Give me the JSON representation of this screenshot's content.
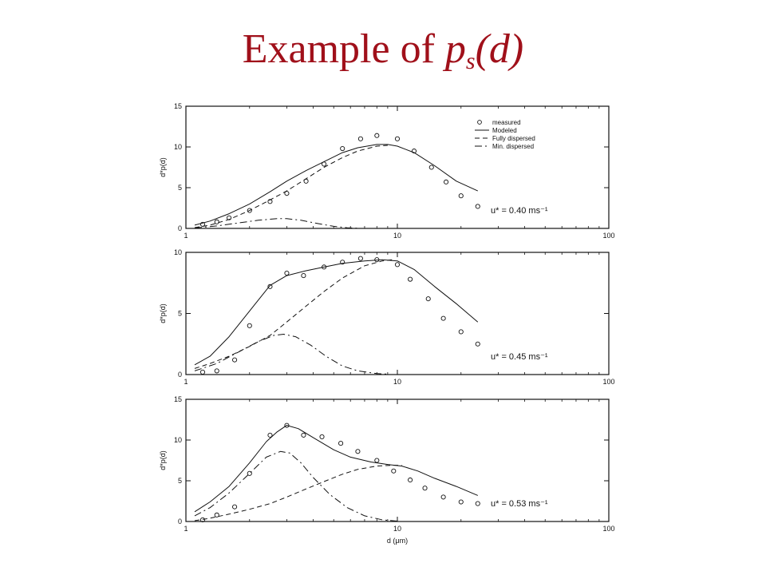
{
  "slide": {
    "title_prefix": "Example of ",
    "title_symbol": "p",
    "title_subscript": "s",
    "title_suffix": "(d)"
  },
  "chart_data": [
    {
      "type": "line",
      "xscale": "log",
      "xlim": [
        1,
        100
      ],
      "ylim": [
        0,
        15
      ],
      "x_ticks": [
        1,
        10,
        100
      ],
      "x_tick_labels": [
        "1",
        "10",
        "100"
      ],
      "y_ticks": [
        0,
        5,
        10,
        15
      ],
      "y_tick_labels": [
        "0",
        "5",
        "10",
        "15"
      ],
      "xlabel": "",
      "ylabel": "d*p(d)",
      "annotation": "u* = 0.40 ms⁻¹",
      "legend": {
        "position": "top-right",
        "entries": [
          {
            "label": "measured",
            "style": "marker"
          },
          {
            "label": "Modeled",
            "style": "solid"
          },
          {
            "label": "Fully dispersed",
            "style": "dashed"
          },
          {
            "label": "Min. dispersed",
            "style": "dashdot"
          }
        ]
      },
      "series": [
        {
          "name": "measured",
          "style": "marker",
          "x": [
            1.2,
            1.4,
            1.6,
            2.0,
            2.5,
            3.0,
            3.7,
            4.5,
            5.5,
            6.7,
            8.0,
            10.0,
            12.0,
            14.5,
            17.0,
            20.0,
            24.0
          ],
          "y": [
            0.5,
            0.8,
            1.3,
            2.2,
            3.3,
            4.3,
            5.8,
            7.9,
            9.8,
            11.0,
            11.4,
            11.0,
            9.5,
            7.5,
            5.7,
            4.0,
            2.7
          ]
        },
        {
          "name": "Modeled",
          "style": "solid",
          "x": [
            1.1,
            1.3,
            1.6,
            2.0,
            2.5,
            3.0,
            3.7,
            4.5,
            5.5,
            6.5,
            8.0,
            9.0,
            10.0,
            12.0,
            15.0,
            19.0,
            24.0
          ],
          "y": [
            0.4,
            0.9,
            1.8,
            3.0,
            4.5,
            5.8,
            7.1,
            8.2,
            9.3,
            9.9,
            10.3,
            10.3,
            10.1,
            9.3,
            7.7,
            5.8,
            4.6
          ]
        },
        {
          "name": "Fully dispersed",
          "style": "dashed",
          "x": [
            1.1,
            1.3,
            1.6,
            2.0,
            2.5,
            3.0,
            3.7,
            4.5,
            5.5,
            6.5,
            8.0,
            9.0
          ],
          "y": [
            0.1,
            0.4,
            1.1,
            2.2,
            3.5,
            4.6,
            6.1,
            7.5,
            8.7,
            9.5,
            10.1,
            10.2
          ]
        },
        {
          "name": "Min. dispersed",
          "style": "dashdot",
          "x": [
            1.1,
            1.4,
            1.8,
            2.2,
            2.7,
            3.0,
            3.5,
            4.2,
            5.0,
            5.8,
            6.5
          ],
          "y": [
            0.05,
            0.3,
            0.7,
            1.0,
            1.2,
            1.2,
            1.0,
            0.6,
            0.25,
            0.08,
            0.02
          ]
        }
      ]
    },
    {
      "type": "line",
      "xscale": "log",
      "xlim": [
        1,
        100
      ],
      "ylim": [
        0,
        10
      ],
      "x_ticks": [
        1,
        10,
        100
      ],
      "x_tick_labels": [
        "1",
        "10",
        "100"
      ],
      "y_ticks": [
        0,
        5,
        10
      ],
      "y_tick_labels": [
        "0",
        "5",
        "10"
      ],
      "xlabel": "",
      "ylabel": "d*p(d)",
      "annotation": "u* = 0.45 ms⁻¹",
      "series": [
        {
          "name": "measured",
          "style": "marker",
          "x": [
            1.2,
            1.4,
            1.7,
            2.0,
            2.5,
            3.0,
            3.6,
            4.5,
            5.5,
            6.7,
            8.0,
            10.0,
            11.5,
            14.0,
            16.5,
            20.0,
            24.0
          ],
          "y": [
            0.2,
            0.3,
            1.2,
            4.0,
            7.2,
            8.3,
            8.1,
            8.8,
            9.2,
            9.5,
            9.4,
            9.0,
            7.8,
            6.2,
            4.6,
            3.5,
            2.5
          ]
        },
        {
          "name": "Modeled",
          "style": "solid",
          "x": [
            1.1,
            1.3,
            1.6,
            2.0,
            2.5,
            3.0,
            3.7,
            4.5,
            5.5,
            7.0,
            8.5,
            10.0,
            12.0,
            15.0,
            19.0,
            24.0
          ],
          "y": [
            0.8,
            1.5,
            3.1,
            5.2,
            7.3,
            8.1,
            8.5,
            8.8,
            9.1,
            9.3,
            9.4,
            9.3,
            8.6,
            7.2,
            5.8,
            4.3
          ]
        },
        {
          "name": "Fully dispersed",
          "style": "dashed",
          "x": [
            1.1,
            1.3,
            1.6,
            2.0,
            2.5,
            3.0,
            3.7,
            4.5,
            5.5,
            7.0,
            8.5,
            9.5
          ],
          "y": [
            0.5,
            0.9,
            1.5,
            2.3,
            3.2,
            4.3,
            5.6,
            6.8,
            7.9,
            8.9,
            9.3,
            9.4
          ]
        },
        {
          "name": "Min. dispersed",
          "style": "dashdot",
          "x": [
            1.1,
            1.4,
            1.8,
            2.2,
            2.6,
            2.9,
            3.3,
            3.9,
            4.6,
            5.5,
            6.5,
            8.0,
            9.0
          ],
          "y": [
            0.3,
            0.9,
            1.9,
            2.7,
            3.2,
            3.3,
            3.1,
            2.4,
            1.5,
            0.7,
            0.3,
            0.08,
            0.03
          ]
        }
      ]
    },
    {
      "type": "line",
      "xscale": "log",
      "xlim": [
        1,
        100
      ],
      "ylim": [
        0,
        15
      ],
      "x_ticks": [
        1,
        10,
        100
      ],
      "x_tick_labels": [
        "1",
        "10",
        "100"
      ],
      "y_ticks": [
        0,
        5,
        10,
        15
      ],
      "y_tick_labels": [
        "0",
        "5",
        "10",
        "15"
      ],
      "xlabel": "d (μm)",
      "ylabel": "d*p(d)",
      "annotation": "u* = 0.53 ms⁻¹",
      "series": [
        {
          "name": "measured",
          "style": "marker",
          "x": [
            1.2,
            1.4,
            1.7,
            2.0,
            2.5,
            3.0,
            3.6,
            4.4,
            5.4,
            6.5,
            8.0,
            9.6,
            11.5,
            13.5,
            16.5,
            20.0,
            24.0
          ],
          "y": [
            0.2,
            0.8,
            1.8,
            5.9,
            10.6,
            11.8,
            10.6,
            10.4,
            9.6,
            8.6,
            7.5,
            6.2,
            5.1,
            4.1,
            3.0,
            2.4,
            2.2
          ]
        },
        {
          "name": "Modeled",
          "style": "solid",
          "x": [
            1.1,
            1.3,
            1.6,
            2.0,
            2.4,
            2.7,
            3.0,
            3.4,
            4.0,
            5.0,
            6.0,
            7.5,
            9.0,
            10.5,
            12.5,
            15.0,
            19.0,
            24.0
          ],
          "y": [
            1.2,
            2.4,
            4.3,
            7.2,
            9.8,
            11.0,
            11.8,
            11.4,
            10.3,
            8.8,
            7.9,
            7.3,
            7.0,
            6.8,
            6.2,
            5.3,
            4.3,
            3.2
          ]
        },
        {
          "name": "Fully dispersed",
          "style": "dashed",
          "x": [
            1.1,
            1.3,
            1.6,
            2.0,
            2.5,
            3.0,
            3.7,
            4.5,
            5.5,
            6.5,
            8.0,
            9.5,
            10.5
          ],
          "y": [
            0.1,
            0.4,
            0.9,
            1.5,
            2.2,
            3.0,
            4.0,
            4.9,
            5.8,
            6.4,
            6.8,
            6.9,
            6.9
          ]
        },
        {
          "name": "Min. dispersed",
          "style": "dashdot",
          "x": [
            1.1,
            1.3,
            1.6,
            2.0,
            2.4,
            2.8,
            3.1,
            3.5,
            4.0,
            4.8,
            5.8,
            7.0,
            8.5,
            10.0
          ],
          "y": [
            0.7,
            1.7,
            3.5,
            5.9,
            7.9,
            8.6,
            8.4,
            7.2,
            5.4,
            3.3,
            1.7,
            0.7,
            0.2,
            0.05
          ]
        }
      ]
    }
  ]
}
